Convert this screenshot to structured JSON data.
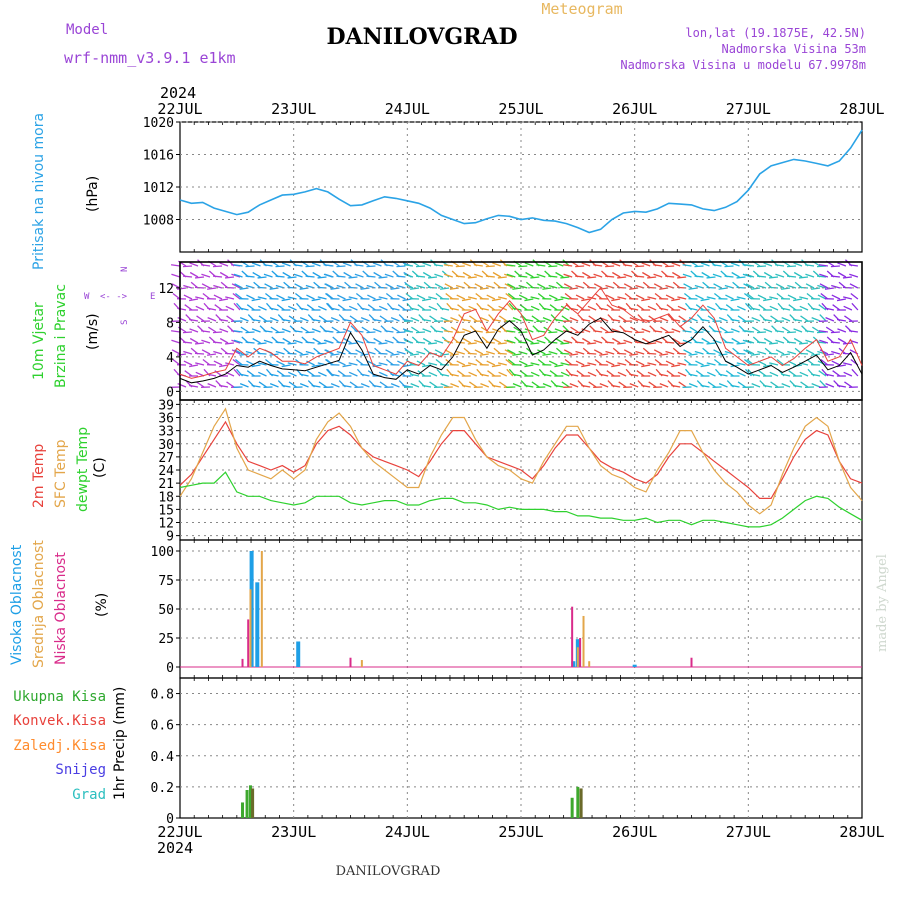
{
  "header": {
    "model_label": "Model",
    "model_name": "wrf-nmm_v3.9.1  e1km",
    "station": "DANILOVGRAD",
    "product": "Meteogram",
    "lonlat": "lon,lat (19.1875E, 42.5N)",
    "elevation": "Nadmorska Visina 53m",
    "model_elevation": "Nadmorska Visina u modelu 67.9978m",
    "year_top": "2024",
    "year_bottom": "2024",
    "footer_station": "DANILOVGRAD",
    "credit": "made by Angel"
  },
  "time_axis": {
    "labels": [
      "22JUL",
      "23JUL",
      "24JUL",
      "25JUL",
      "26JUL",
      "27JUL",
      "28JUL"
    ]
  },
  "panels": {
    "pressure": {
      "ylabel_1": "Pritisak na nivou mora",
      "unit": "(hPa)",
      "ticks": [
        "1008",
        "1012",
        "1016",
        "1020"
      ]
    },
    "wind": {
      "ylabel_1": "10m Vjetar",
      "ylabel_2": "Brzina i Pravac",
      "unit": "(m/s)",
      "ticks": [
        "0",
        "4",
        "8",
        "12"
      ],
      "compass": {
        "n": "N",
        "w": "W",
        "e": "E",
        "s": "S",
        "arrows": "<- ->"
      }
    },
    "temperature": {
      "ylabel_1": "2m Temp",
      "ylabel_2": "SFC Temp",
      "ylabel_3": "dewpt Temp",
      "unit": "(C)",
      "ticks": [
        "9",
        "12",
        "15",
        "18",
        "21",
        "24",
        "27",
        "30",
        "33",
        "36",
        "39"
      ]
    },
    "clouds": {
      "ylabel_1": "Visoka Oblacnost",
      "ylabel_2": "Srednja Oblacnost",
      "ylabel_3": "Niska Oblacnost",
      "unit": "(%)",
      "ticks": [
        "0",
        "25",
        "50",
        "75",
        "100"
      ]
    },
    "precip": {
      "legend": [
        "Ukupna Kisa",
        "Konvek.Kisa",
        "Zaledj.Kisa",
        "Snijeg",
        "Grad"
      ],
      "ylabel": "1hr Precip (mm)",
      "ticks": [
        "0",
        "0.2",
        "0.4",
        "0.6",
        "0.8"
      ]
    }
  },
  "colors": {
    "pressure": "#2ba3e6",
    "temp2m": "#e8423c",
    "sfc": "#e3a64a",
    "dewpt": "#2ed12e",
    "wind_speed": "#000000",
    "wind_gust": "#e8423c",
    "cloud_high": "#1e9fe6",
    "cloud_mid": "#e3a64a",
    "cloud_low": "#d92b8a",
    "rain_total": "#2ea82e",
    "rain_conv": "#e8423c",
    "rain_frz": "#ff8c2e",
    "snow": "#4a3ee3",
    "hail": "#2bbfbf",
    "title": "#000000",
    "model": "#9a45d6",
    "meteogram": "#e8b860"
  },
  "chart_data": [
    {
      "type": "line",
      "name": "pressure",
      "x_unit": "days since 22JUL",
      "ylim": [
        1004,
        1020
      ],
      "x": [
        0,
        0.1,
        0.2,
        0.3,
        0.4,
        0.5,
        0.6,
        0.7,
        0.8,
        0.9,
        1.0,
        1.1,
        1.2,
        1.3,
        1.4,
        1.5,
        1.6,
        1.7,
        1.8,
        1.9,
        2.0,
        2.1,
        2.2,
        2.3,
        2.4,
        2.5,
        2.6,
        2.7,
        2.8,
        2.9,
        3.0,
        3.1,
        3.2,
        3.3,
        3.4,
        3.5,
        3.6,
        3.7,
        3.8,
        3.9,
        4.0,
        4.1,
        4.2,
        4.3,
        4.4,
        4.5,
        4.6,
        4.7,
        4.8,
        4.9,
        5.0,
        5.1,
        5.2,
        5.3,
        5.4,
        5.5,
        5.6,
        5.7,
        5.8,
        5.9,
        6.0
      ],
      "values": [
        1010.4,
        1010.0,
        1010.1,
        1009.4,
        1009.0,
        1008.6,
        1008.9,
        1009.8,
        1010.4,
        1011.0,
        1011.1,
        1011.4,
        1011.8,
        1011.4,
        1010.5,
        1009.7,
        1009.8,
        1010.3,
        1010.8,
        1010.6,
        1010.3,
        1010.0,
        1009.4,
        1008.5,
        1008.0,
        1007.5,
        1007.6,
        1008.1,
        1008.5,
        1008.4,
        1008.0,
        1008.2,
        1007.9,
        1007.8,
        1007.5,
        1007.0,
        1006.4,
        1006.8,
        1008.0,
        1008.8,
        1009.0,
        1008.9,
        1009.3,
        1010.0,
        1009.9,
        1009.8,
        1009.3,
        1009.1,
        1009.5,
        1010.2,
        1011.6,
        1013.6,
        1014.6,
        1015.0,
        1015.4,
        1015.2,
        1014.9,
        1014.6,
        1015.2,
        1016.8,
        1019.0
      ]
    },
    {
      "type": "line",
      "name": "wind",
      "x_unit": "days since 22JUL",
      "ylim": [
        -1,
        15
      ],
      "x": [
        0,
        0.1,
        0.2,
        0.3,
        0.4,
        0.5,
        0.6,
        0.7,
        0.8,
        0.9,
        1.0,
        1.1,
        1.2,
        1.3,
        1.4,
        1.5,
        1.6,
        1.7,
        1.8,
        1.9,
        2.0,
        2.1,
        2.2,
        2.3,
        2.4,
        2.5,
        2.6,
        2.7,
        2.8,
        2.9,
        3.0,
        3.1,
        3.2,
        3.3,
        3.4,
        3.5,
        3.6,
        3.7,
        3.8,
        3.9,
        4.0,
        4.1,
        4.2,
        4.3,
        4.4,
        4.5,
        4.6,
        4.7,
        4.8,
        4.9,
        5.0,
        5.1,
        5.2,
        5.3,
        5.4,
        5.5,
        5.6,
        5.7,
        5.8,
        5.9,
        6.0
      ],
      "speed": [
        1.5,
        1.0,
        1.2,
        1.5,
        2.0,
        3.0,
        2.8,
        3.5,
        3.0,
        2.6,
        2.5,
        2.4,
        2.8,
        3.2,
        3.6,
        6.8,
        4.8,
        2.0,
        1.6,
        1.4,
        2.5,
        2.0,
        3.0,
        2.5,
        4.0,
        6.5,
        7.0,
        5.0,
        7.2,
        8.2,
        7.0,
        4.2,
        4.8,
        6.0,
        7.0,
        6.5,
        7.8,
        8.5,
        7.0,
        6.8,
        6.0,
        5.5,
        6.0,
        6.5,
        5.2,
        6.0,
        7.5,
        6.0,
        3.5,
        2.8,
        2.0,
        2.5,
        3.0,
        2.2,
        2.8,
        3.5,
        4.2,
        2.5,
        3.0,
        4.5,
        2.0
      ],
      "gust": [
        2.0,
        1.5,
        1.8,
        2.2,
        2.5,
        5.0,
        4.0,
        5.0,
        4.5,
        3.5,
        3.5,
        3.2,
        4.0,
        4.5,
        5.0,
        8.0,
        6.5,
        3.0,
        2.5,
        2.0,
        3.5,
        3.0,
        4.5,
        4.0,
        6.0,
        9.0,
        9.5,
        7.0,
        9.0,
        10.5,
        9.0,
        6.0,
        6.5,
        8.5,
        10.0,
        9.0,
        10.5,
        12.0,
        10.0,
        9.5,
        8.5,
        8.0,
        8.5,
        9.0,
        7.5,
        8.5,
        10.0,
        8.5,
        5.0,
        4.0,
        3.0,
        3.5,
        4.0,
        3.0,
        3.8,
        5.0,
        6.0,
        3.5,
        4.0,
        6.0,
        3.0
      ]
    },
    {
      "type": "line",
      "name": "temperature",
      "x_unit": "days since 22JUL",
      "ylim": [
        8,
        40
      ],
      "series": [
        {
          "name": "2m Temp",
          "values": [
            20.5,
            23,
            27,
            31,
            35,
            30,
            26,
            25,
            24,
            25,
            23.5,
            25,
            30,
            33,
            34,
            32,
            29,
            27,
            26,
            25,
            24,
            22.5,
            26,
            30,
            33,
            33,
            30,
            27,
            26,
            25,
            24,
            22,
            25,
            29,
            32,
            32,
            29,
            26,
            24.5,
            23.5,
            22,
            21,
            23,
            27,
            30,
            30,
            28,
            26,
            24,
            22,
            20,
            17.5,
            17.5,
            22,
            27,
            31,
            33,
            32,
            26,
            22,
            21
          ]
        },
        {
          "name": "SFC Temp",
          "values": [
            18,
            22,
            28,
            34,
            38,
            29,
            24,
            23,
            22,
            24,
            22,
            24,
            31,
            35,
            37,
            34,
            29,
            26,
            24,
            22,
            20,
            20,
            27,
            32,
            36,
            36,
            31,
            27,
            25,
            24,
            22,
            21,
            26,
            30,
            34,
            34,
            29,
            25,
            23,
            22,
            20,
            19,
            24,
            28,
            33,
            33,
            28,
            24,
            21,
            19,
            16,
            14,
            16,
            23,
            29,
            34,
            36,
            34,
            26,
            20,
            17
          ]
        },
        {
          "name": "dewpt Temp",
          "values": [
            20,
            20.5,
            21,
            21,
            23.5,
            19,
            18,
            18,
            17,
            16.5,
            16,
            16.5,
            18,
            18,
            18,
            16.5,
            16,
            16.5,
            17,
            17,
            16,
            16,
            17,
            17.5,
            17.5,
            16.5,
            16.5,
            16,
            15,
            15.5,
            15,
            15,
            15,
            14.5,
            14.5,
            13.5,
            13.5,
            13,
            13,
            12.5,
            12.5,
            13,
            12,
            12.5,
            12.5,
            11.5,
            12.5,
            12.5,
            12,
            11.5,
            11,
            11,
            11.5,
            13,
            15,
            17,
            18,
            17.5,
            15.5,
            14,
            12.5
          ]
        }
      ]
    },
    {
      "type": "bar",
      "name": "clouds",
      "x_unit": "days since 22JUL",
      "ylim": [
        0,
        100
      ],
      "series": [
        {
          "name": "Visoka Oblacnost",
          "points": [
            [
              0.63,
              100
            ],
            [
              0.68,
              73
            ],
            [
              1.04,
              22
            ],
            [
              3.46,
              5
            ],
            [
              3.5,
              24
            ],
            [
              4.0,
              2
            ]
          ]
        },
        {
          "name": "Srednja Oblacnost",
          "points": [
            [
              0.62,
              67
            ],
            [
              0.72,
              100
            ],
            [
              1.5,
              3
            ],
            [
              1.6,
              6
            ],
            [
              3.5,
              17
            ],
            [
              3.55,
              44
            ],
            [
              3.6,
              5
            ],
            [
              4.5,
              1
            ]
          ]
        },
        {
          "name": "Niska Oblacnost",
          "points": [
            [
              0.55,
              7
            ],
            [
              0.6,
              41
            ],
            [
              1.5,
              8
            ],
            [
              3.45,
              52
            ],
            [
              3.52,
              25
            ],
            [
              4.5,
              8
            ]
          ]
        }
      ]
    },
    {
      "type": "bar",
      "name": "precip",
      "x_unit": "days since 22JUL",
      "ylim": [
        0,
        0.9
      ],
      "series": [
        {
          "name": "Ukupna Kisa",
          "points": [
            [
              0.55,
              0.1
            ],
            [
              0.59,
              0.18
            ],
            [
              0.62,
              0.21
            ],
            [
              3.45,
              0.13
            ],
            [
              3.5,
              0.2
            ]
          ]
        },
        {
          "name": "Konvek.Kisa",
          "points": [
            [
              0.63,
              0.19
            ],
            [
              3.52,
              0.19
            ]
          ]
        }
      ]
    }
  ]
}
